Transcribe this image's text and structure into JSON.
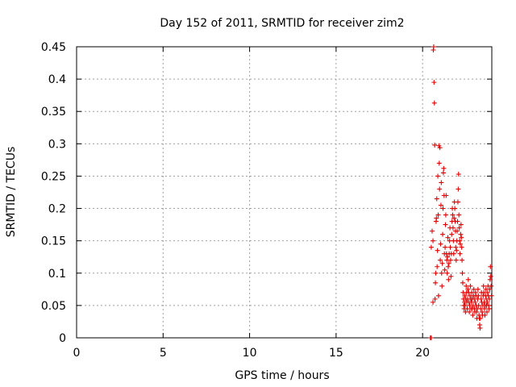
{
  "chart_data": {
    "type": "scatter",
    "title": "Day 152 of 2011, SRMTID for receiver zim2",
    "xlabel": "GPS time / hours",
    "ylabel": "SRMTID / TECUs",
    "xlim": [
      0,
      24
    ],
    "ylim": [
      0,
      0.45
    ],
    "grid": true,
    "marker": "plus",
    "color": "#e00000",
    "xticks": [
      0,
      5,
      10,
      15,
      20
    ],
    "xtick_labels": [
      "0",
      "5",
      "10",
      "15",
      "20"
    ],
    "yticks": [
      0,
      0.05,
      0.1,
      0.15,
      0.2,
      0.25,
      0.3,
      0.35,
      0.4,
      0.45
    ],
    "ytick_labels": [
      "0",
      "0.05",
      "0.1",
      "0.15",
      "0.2",
      "0.25",
      "0.3",
      "0.35",
      "0.4",
      "0.45"
    ],
    "series": [
      {
        "name": "zim2",
        "points": [
          [
            20.45,
            0.0
          ],
          [
            20.5,
            0.0
          ],
          [
            20.5,
            0.14
          ],
          [
            20.55,
            0.165
          ],
          [
            20.6,
            0.15
          ],
          [
            20.6,
            0.055
          ],
          [
            20.62,
            0.445
          ],
          [
            20.64,
            0.45
          ],
          [
            20.66,
            0.395
          ],
          [
            20.68,
            0.363
          ],
          [
            20.7,
            0.298
          ],
          [
            20.72,
            0.06
          ],
          [
            20.74,
            0.085
          ],
          [
            20.76,
            0.1
          ],
          [
            20.78,
            0.18
          ],
          [
            20.8,
            0.185
          ],
          [
            20.82,
            0.215
          ],
          [
            20.84,
            0.11
          ],
          [
            20.86,
            0.135
          ],
          [
            20.88,
            0.25
          ],
          [
            20.9,
            0.19
          ],
          [
            20.92,
            0.065
          ],
          [
            20.94,
            0.297
          ],
          [
            20.96,
            0.27
          ],
          [
            20.98,
            0.23
          ],
          [
            21.0,
            0.294
          ],
          [
            21.02,
            0.12
          ],
          [
            21.04,
            0.145
          ],
          [
            21.06,
            0.205
          ],
          [
            21.08,
            0.24
          ],
          [
            21.1,
            0.1
          ],
          [
            21.12,
            0.08
          ],
          [
            21.14,
            0.115
          ],
          [
            21.16,
            0.16
          ],
          [
            21.18,
            0.2
          ],
          [
            21.2,
            0.255
          ],
          [
            21.22,
            0.262
          ],
          [
            21.24,
            0.22
          ],
          [
            21.26,
            0.13
          ],
          [
            21.28,
            0.105
          ],
          [
            21.3,
            0.14
          ],
          [
            21.32,
            0.175
          ],
          [
            21.34,
            0.19
          ],
          [
            21.36,
            0.22
          ],
          [
            21.38,
            0.13
          ],
          [
            21.4,
            0.12
          ],
          [
            21.42,
            0.1
          ],
          [
            21.44,
            0.125
          ],
          [
            21.46,
            0.155
          ],
          [
            21.48,
            0.11
          ],
          [
            21.5,
            0.09
          ],
          [
            21.52,
            0.115
          ],
          [
            21.54,
            0.13
          ],
          [
            21.56,
            0.15
          ],
          [
            21.58,
            0.17
          ],
          [
            21.6,
            0.14
          ],
          [
            21.62,
            0.12
          ],
          [
            21.64,
            0.095
          ],
          [
            21.66,
            0.13
          ],
          [
            21.68,
            0.16
          ],
          [
            21.7,
            0.18
          ],
          [
            21.72,
            0.2
          ],
          [
            21.74,
            0.19
          ],
          [
            21.76,
            0.17
          ],
          [
            21.78,
            0.15
          ],
          [
            21.8,
            0.13
          ],
          [
            21.82,
            0.185
          ],
          [
            21.84,
            0.21
          ],
          [
            21.86,
            0.2
          ],
          [
            21.88,
            0.18
          ],
          [
            21.9,
            0.165
          ],
          [
            21.92,
            0.14
          ],
          [
            21.94,
            0.12
          ],
          [
            21.96,
            0.135
          ],
          [
            21.98,
            0.15
          ],
          [
            22.0,
            0.165
          ],
          [
            22.02,
            0.18
          ],
          [
            22.04,
            0.21
          ],
          [
            22.06,
            0.23
          ],
          [
            22.08,
            0.253
          ],
          [
            22.1,
            0.19
          ],
          [
            22.12,
            0.17
          ],
          [
            22.14,
            0.15
          ],
          [
            22.16,
            0.13
          ],
          [
            22.18,
            0.145
          ],
          [
            22.2,
            0.16
          ],
          [
            22.22,
            0.175
          ],
          [
            22.24,
            0.155
          ],
          [
            22.26,
            0.14
          ],
          [
            22.28,
            0.12
          ],
          [
            22.3,
            0.1
          ],
          [
            22.32,
            0.085
          ],
          [
            22.34,
            0.07
          ],
          [
            22.36,
            0.06
          ],
          [
            22.38,
            0.05
          ],
          [
            22.4,
            0.045
          ],
          [
            22.42,
            0.055
          ],
          [
            22.44,
            0.065
          ],
          [
            22.46,
            0.05
          ],
          [
            22.48,
            0.04
          ],
          [
            22.5,
            0.06
          ],
          [
            22.52,
            0.08
          ],
          [
            22.54,
            0.07
          ],
          [
            22.56,
            0.055
          ],
          [
            22.58,
            0.045
          ],
          [
            22.6,
            0.06
          ],
          [
            22.62,
            0.075
          ],
          [
            22.64,
            0.09
          ],
          [
            22.66,
            0.07
          ],
          [
            22.68,
            0.055
          ],
          [
            22.7,
            0.04
          ],
          [
            22.72,
            0.05
          ],
          [
            22.74,
            0.065
          ],
          [
            22.76,
            0.08
          ],
          [
            22.78,
            0.06
          ],
          [
            22.8,
            0.045
          ],
          [
            22.82,
            0.055
          ],
          [
            22.84,
            0.07
          ],
          [
            22.86,
            0.06
          ],
          [
            22.88,
            0.045
          ],
          [
            22.9,
            0.035
          ],
          [
            22.92,
            0.05
          ],
          [
            22.94,
            0.065
          ],
          [
            22.96,
            0.075
          ],
          [
            22.98,
            0.06
          ],
          [
            23.0,
            0.045
          ],
          [
            23.02,
            0.04
          ],
          [
            23.04,
            0.055
          ],
          [
            23.06,
            0.07
          ],
          [
            23.08,
            0.065
          ],
          [
            23.1,
            0.05
          ],
          [
            23.12,
            0.04
          ],
          [
            23.14,
            0.03
          ],
          [
            23.16,
            0.045
          ],
          [
            23.18,
            0.06
          ],
          [
            23.2,
            0.075
          ],
          [
            23.22,
            0.065
          ],
          [
            23.24,
            0.05
          ],
          [
            23.26,
            0.035
          ],
          [
            23.28,
            0.03
          ],
          [
            23.3,
            0.02
          ],
          [
            23.32,
            0.015
          ],
          [
            23.34,
            0.03
          ],
          [
            23.36,
            0.045
          ],
          [
            23.38,
            0.06
          ],
          [
            23.4,
            0.07
          ],
          [
            23.42,
            0.055
          ],
          [
            23.44,
            0.04
          ],
          [
            23.46,
            0.035
          ],
          [
            23.48,
            0.05
          ],
          [
            23.5,
            0.065
          ],
          [
            23.52,
            0.08
          ],
          [
            23.54,
            0.07
          ],
          [
            23.56,
            0.055
          ],
          [
            23.58,
            0.045
          ],
          [
            23.6,
            0.035
          ],
          [
            23.62,
            0.05
          ],
          [
            23.64,
            0.065
          ],
          [
            23.66,
            0.075
          ],
          [
            23.68,
            0.06
          ],
          [
            23.7,
            0.05
          ],
          [
            23.72,
            0.04
          ],
          [
            23.74,
            0.055
          ],
          [
            23.76,
            0.07
          ],
          [
            23.78,
            0.08
          ],
          [
            23.8,
            0.065
          ],
          [
            23.82,
            0.05
          ],
          [
            23.84,
            0.045
          ],
          [
            23.86,
            0.06
          ],
          [
            23.88,
            0.075
          ],
          [
            23.9,
            0.09
          ],
          [
            23.92,
            0.11
          ],
          [
            23.94,
            0.095
          ],
          [
            23.96,
            0.08
          ],
          [
            23.98,
            0.065
          ]
        ]
      }
    ]
  }
}
